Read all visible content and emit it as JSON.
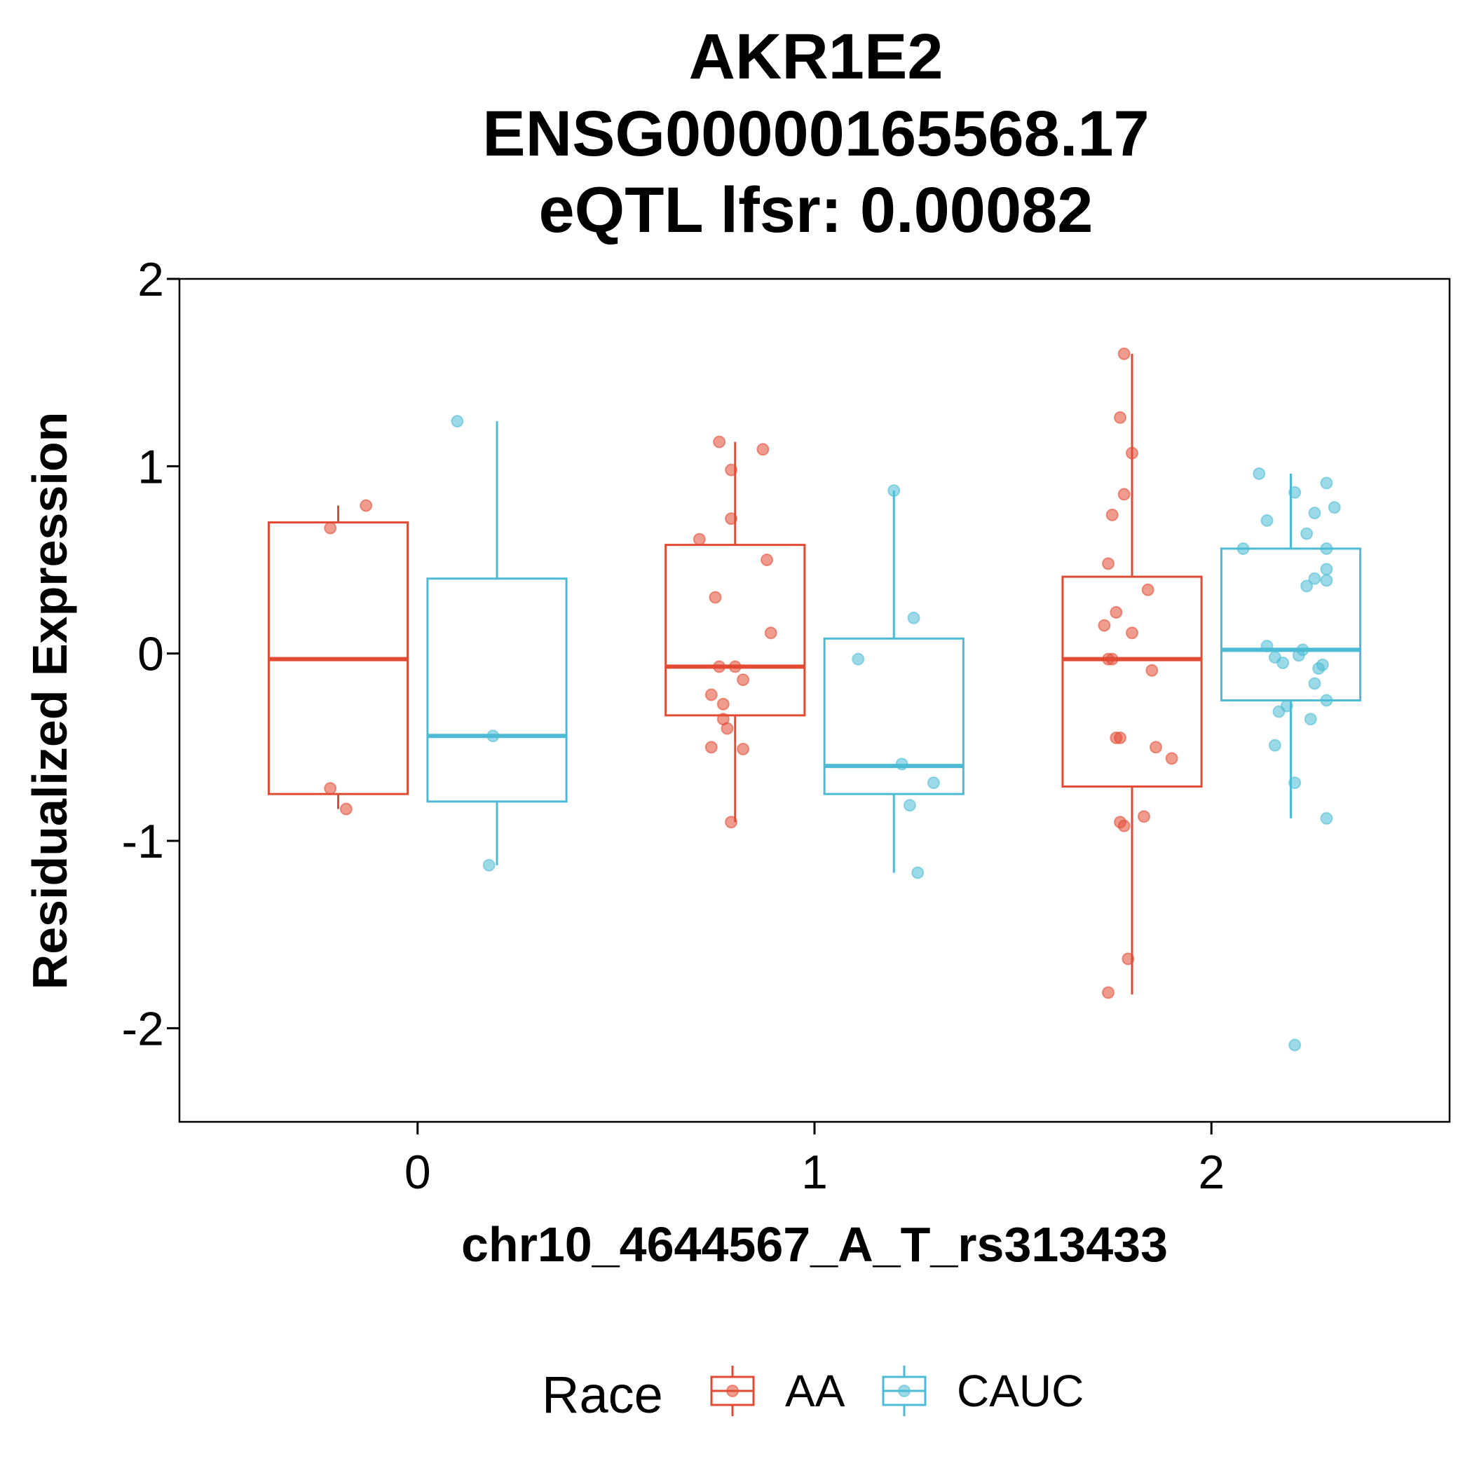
{
  "chart_data": {
    "type": "boxplot",
    "title_lines": [
      "AKR1E2",
      "ENSG00000165568.17",
      "eQTL lfsr: 0.00082"
    ],
    "xlabel": "chr10_4644567_A_T_rs313433",
    "ylabel": "Residualized Expression",
    "categories": [
      "0",
      "1",
      "2"
    ],
    "ylim": [
      -2.5,
      2.0
    ],
    "y_ticks": [
      -2,
      -1,
      0,
      1,
      2
    ],
    "y_tick_labels": [
      "-2",
      "-1",
      "0",
      "1",
      "2"
    ],
    "grid": false,
    "legend": {
      "title": "Race",
      "position": "bottom",
      "entries": [
        "AA",
        "CAUC"
      ]
    },
    "colors": {
      "AA": "#E24A33",
      "CAUC": "#4DBBD5"
    },
    "series": [
      {
        "name": "AA",
        "boxes": [
          {
            "category": "0",
            "min": -0.83,
            "q1": -0.75,
            "median": -0.03,
            "q3": 0.7,
            "max": 0.79
          },
          {
            "category": "1",
            "min": -0.9,
            "q1": -0.33,
            "median": -0.07,
            "q3": 0.58,
            "max": 1.13
          },
          {
            "category": "2",
            "min": -1.82,
            "q1": -0.71,
            "median": -0.03,
            "q3": 0.41,
            "max": 1.6
          }
        ],
        "points": [
          {
            "category": "0",
            "jitter": -0.22,
            "value": 0.67
          },
          {
            "category": "0",
            "jitter": -0.13,
            "value": 0.79
          },
          {
            "category": "0",
            "jitter": -0.22,
            "value": -0.72
          },
          {
            "category": "0",
            "jitter": -0.18,
            "value": -0.83
          },
          {
            "category": "1",
            "jitter": -0.29,
            "value": 0.61
          },
          {
            "category": "1",
            "jitter": -0.24,
            "value": 1.13
          },
          {
            "category": "1",
            "jitter": -0.21,
            "value": 0.98
          },
          {
            "category": "1",
            "jitter": -0.13,
            "value": 1.09
          },
          {
            "category": "1",
            "jitter": -0.21,
            "value": 0.72
          },
          {
            "category": "1",
            "jitter": -0.12,
            "value": 0.5
          },
          {
            "category": "1",
            "jitter": -0.25,
            "value": 0.3
          },
          {
            "category": "1",
            "jitter": -0.11,
            "value": 0.11
          },
          {
            "category": "1",
            "jitter": -0.24,
            "value": -0.07
          },
          {
            "category": "1",
            "jitter": -0.2,
            "value": -0.07
          },
          {
            "category": "1",
            "jitter": -0.18,
            "value": -0.14
          },
          {
            "category": "1",
            "jitter": -0.26,
            "value": -0.22
          },
          {
            "category": "1",
            "jitter": -0.23,
            "value": -0.27
          },
          {
            "category": "1",
            "jitter": -0.23,
            "value": -0.35
          },
          {
            "category": "1",
            "jitter": -0.22,
            "value": -0.4
          },
          {
            "category": "1",
            "jitter": -0.26,
            "value": -0.5
          },
          {
            "category": "1",
            "jitter": -0.18,
            "value": -0.51
          },
          {
            "category": "1",
            "jitter": -0.21,
            "value": -0.9
          },
          {
            "category": "2",
            "jitter": -0.22,
            "value": 1.6
          },
          {
            "category": "2",
            "jitter": -0.23,
            "value": 1.26
          },
          {
            "category": "2",
            "jitter": -0.2,
            "value": 1.07
          },
          {
            "category": "2",
            "jitter": -0.22,
            "value": 0.85
          },
          {
            "category": "2",
            "jitter": -0.25,
            "value": 0.74
          },
          {
            "category": "2",
            "jitter": -0.26,
            "value": 0.48
          },
          {
            "category": "2",
            "jitter": -0.16,
            "value": 0.34
          },
          {
            "category": "2",
            "jitter": -0.24,
            "value": 0.22
          },
          {
            "category": "2",
            "jitter": -0.27,
            "value": 0.15
          },
          {
            "category": "2",
            "jitter": -0.2,
            "value": 0.11
          },
          {
            "category": "2",
            "jitter": -0.26,
            "value": -0.03
          },
          {
            "category": "2",
            "jitter": -0.25,
            "value": -0.03
          },
          {
            "category": "2",
            "jitter": -0.15,
            "value": -0.09
          },
          {
            "category": "2",
            "jitter": -0.24,
            "value": -0.45
          },
          {
            "category": "2",
            "jitter": -0.23,
            "value": -0.45
          },
          {
            "category": "2",
            "jitter": -0.14,
            "value": -0.5
          },
          {
            "category": "2",
            "jitter": -0.1,
            "value": -0.56
          },
          {
            "category": "2",
            "jitter": -0.17,
            "value": -0.87
          },
          {
            "category": "2",
            "jitter": -0.23,
            "value": -0.9
          },
          {
            "category": "2",
            "jitter": -0.22,
            "value": -0.92
          },
          {
            "category": "2",
            "jitter": -0.21,
            "value": -1.63
          },
          {
            "category": "2",
            "jitter": -0.26,
            "value": -1.81
          }
        ]
      },
      {
        "name": "CAUC",
        "boxes": [
          {
            "category": "0",
            "min": -1.13,
            "q1": -0.79,
            "median": -0.44,
            "q3": 0.4,
            "max": 1.24
          },
          {
            "category": "1",
            "min": -1.17,
            "q1": -0.75,
            "median": -0.6,
            "q3": 0.08,
            "max": 0.87
          },
          {
            "category": "2",
            "min": -0.88,
            "q1": -0.25,
            "median": 0.02,
            "q3": 0.56,
            "max": 0.96
          }
        ],
        "points": [
          {
            "category": "0",
            "jitter": 0.1,
            "value": 1.24
          },
          {
            "category": "0",
            "jitter": 0.19,
            "value": -0.44
          },
          {
            "category": "0",
            "jitter": 0.18,
            "value": -1.13
          },
          {
            "category": "1",
            "jitter": 0.2,
            "value": 0.87
          },
          {
            "category": "1",
            "jitter": 0.25,
            "value": 0.19
          },
          {
            "category": "1",
            "jitter": 0.11,
            "value": -0.03
          },
          {
            "category": "1",
            "jitter": 0.22,
            "value": -0.59
          },
          {
            "category": "1",
            "jitter": 0.3,
            "value": -0.69
          },
          {
            "category": "1",
            "jitter": 0.24,
            "value": -0.81
          },
          {
            "category": "1",
            "jitter": 0.26,
            "value": -1.17
          },
          {
            "category": "2",
            "jitter": 0.12,
            "value": 0.96
          },
          {
            "category": "2",
            "jitter": 0.21,
            "value": 0.86
          },
          {
            "category": "2",
            "jitter": 0.29,
            "value": 0.91
          },
          {
            "category": "2",
            "jitter": 0.31,
            "value": 0.78
          },
          {
            "category": "2",
            "jitter": 0.26,
            "value": 0.75
          },
          {
            "category": "2",
            "jitter": 0.14,
            "value": 0.71
          },
          {
            "category": "2",
            "jitter": 0.24,
            "value": 0.64
          },
          {
            "category": "2",
            "jitter": 0.08,
            "value": 0.56
          },
          {
            "category": "2",
            "jitter": 0.29,
            "value": 0.56
          },
          {
            "category": "2",
            "jitter": 0.29,
            "value": 0.45
          },
          {
            "category": "2",
            "jitter": 0.26,
            "value": 0.4
          },
          {
            "category": "2",
            "jitter": 0.29,
            "value": 0.39
          },
          {
            "category": "2",
            "jitter": 0.24,
            "value": 0.36
          },
          {
            "category": "2",
            "jitter": 0.14,
            "value": 0.04
          },
          {
            "category": "2",
            "jitter": 0.23,
            "value": 0.02
          },
          {
            "category": "2",
            "jitter": 0.22,
            "value": -0.01
          },
          {
            "category": "2",
            "jitter": 0.16,
            "value": -0.02
          },
          {
            "category": "2",
            "jitter": 0.18,
            "value": -0.05
          },
          {
            "category": "2",
            "jitter": 0.28,
            "value": -0.06
          },
          {
            "category": "2",
            "jitter": 0.27,
            "value": -0.08
          },
          {
            "category": "2",
            "jitter": 0.26,
            "value": -0.16
          },
          {
            "category": "2",
            "jitter": 0.29,
            "value": -0.25
          },
          {
            "category": "2",
            "jitter": 0.19,
            "value": -0.28
          },
          {
            "category": "2",
            "jitter": 0.17,
            "value": -0.31
          },
          {
            "category": "2",
            "jitter": 0.25,
            "value": -0.35
          },
          {
            "category": "2",
            "jitter": 0.16,
            "value": -0.49
          },
          {
            "category": "2",
            "jitter": 0.21,
            "value": -0.69
          },
          {
            "category": "2",
            "jitter": 0.29,
            "value": -0.88
          },
          {
            "category": "2",
            "jitter": 0.21,
            "value": -2.09
          }
        ]
      }
    ]
  }
}
